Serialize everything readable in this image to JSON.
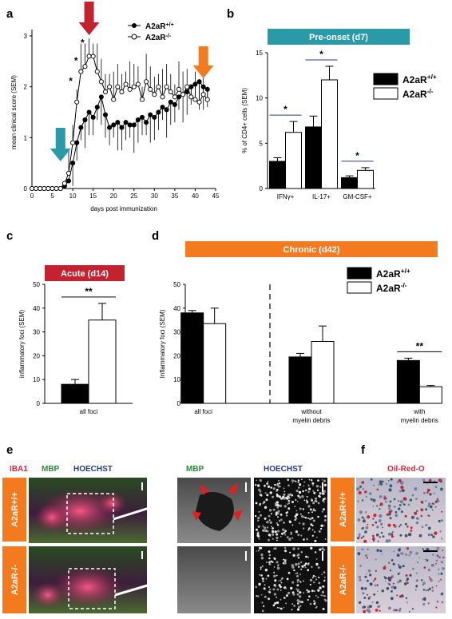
{
  "panels": {
    "a": "a",
    "b": "b",
    "c": "c",
    "d": "d",
    "e": "e",
    "f": "f"
  },
  "genotypes": {
    "wt": "A2aR+/+",
    "ko": "A2aR-/-"
  },
  "colors": {
    "teal": "#2a9aa8",
    "red": "#c4222f",
    "orange": "#f47a20",
    "black": "#000000",
    "white": "#ffffff"
  },
  "chart_data": [
    {
      "id": "a",
      "type": "line",
      "xlabel": "days post immunization",
      "ylabel": "mean clinical score (SEM)",
      "xlim": [
        0,
        45
      ],
      "ylim": [
        0,
        3
      ],
      "xticks": [
        0,
        5,
        10,
        15,
        20,
        25,
        30,
        35,
        40,
        45
      ],
      "yticks": [
        0,
        1,
        2,
        3
      ],
      "legend": [
        "A2aR+/+",
        "A2aR-/-"
      ],
      "series": [
        {
          "name": "A2aR+/+",
          "marker": "filled",
          "x": [
            0,
            1,
            2,
            3,
            4,
            5,
            6,
            7,
            8,
            9,
            10,
            11,
            12,
            13,
            14,
            15,
            16,
            17,
            18,
            19,
            20,
            21,
            22,
            23,
            24,
            25,
            26,
            27,
            28,
            29,
            30,
            31,
            32,
            33,
            34,
            35,
            36,
            37,
            38,
            39,
            40,
            41,
            42,
            43
          ],
          "y": [
            0,
            0,
            0,
            0,
            0,
            0,
            0,
            0,
            0.05,
            0.15,
            0.5,
            0.9,
            1.2,
            1.35,
            1.5,
            1.4,
            1.6,
            1.8,
            1.45,
            1.2,
            1.25,
            1.3,
            1.2,
            1.3,
            1.25,
            1.25,
            1.35,
            1.4,
            1.3,
            1.45,
            1.4,
            1.5,
            1.6,
            1.55,
            1.7,
            1.65,
            1.8,
            1.85,
            1.9,
            2.0,
            2.05,
            2.1,
            2.0,
            1.95
          ]
        },
        {
          "name": "A2aR-/-",
          "marker": "open",
          "x": [
            0,
            1,
            2,
            3,
            4,
            5,
            6,
            7,
            8,
            9,
            10,
            11,
            12,
            13,
            14,
            15,
            16,
            17,
            18,
            19,
            20,
            21,
            22,
            23,
            24,
            25,
            26,
            27,
            28,
            29,
            30,
            31,
            32,
            33,
            34,
            35,
            36,
            37,
            38,
            39,
            40,
            41,
            42,
            43
          ],
          "y": [
            0,
            0,
            0,
            0,
            0,
            0,
            0,
            0,
            0.1,
            0.3,
            0.9,
            1.7,
            2.3,
            2.4,
            2.6,
            2.6,
            2.3,
            2.1,
            1.9,
            2.0,
            1.75,
            2.0,
            1.9,
            2.05,
            1.95,
            2.0,
            2.05,
            1.75,
            2.1,
            1.95,
            1.85,
            2.0,
            1.8,
            2.0,
            1.9,
            1.8,
            1.95,
            1.85,
            2.0,
            1.8,
            1.75,
            1.7,
            1.85,
            1.75
          ]
        }
      ],
      "annotations": [
        "*",
        "*",
        "*"
      ],
      "arrows": [
        {
          "at_day": 7,
          "color": "teal"
        },
        {
          "at_day": 14,
          "color": "red"
        },
        {
          "at_day": 42,
          "color": "orange"
        }
      ]
    },
    {
      "id": "b",
      "type": "bar",
      "banner": "Pre-onset (d7)",
      "ylabel": "% of CD4+ cells (SEM)",
      "ylim": [
        0,
        15
      ],
      "yticks": [
        0,
        5,
        10,
        15
      ],
      "categories": [
        "IFNγ+",
        "IL-17+",
        "GM-CSF+"
      ],
      "series": [
        {
          "name": "A2aR+/+",
          "values": [
            3.0,
            6.8,
            1.2
          ],
          "errors": [
            0.4,
            1.2,
            0.2
          ]
        },
        {
          "name": "A2aR-/-",
          "values": [
            6.2,
            12.0,
            2.0
          ],
          "errors": [
            1.2,
            1.5,
            0.3
          ]
        }
      ],
      "significance": [
        "*",
        "*",
        "*"
      ]
    },
    {
      "id": "c",
      "type": "bar",
      "banner": "Acute (d14)",
      "ylabel": "inflammatory foci (SEM)",
      "ylim": [
        0,
        50
      ],
      "yticks": [
        0,
        10,
        20,
        30,
        40,
        50
      ],
      "categories": [
        "all foci"
      ],
      "series": [
        {
          "name": "A2aR+/+",
          "values": [
            8
          ],
          "errors": [
            2
          ]
        },
        {
          "name": "A2aR-/-",
          "values": [
            35
          ],
          "errors": [
            7
          ]
        }
      ],
      "significance": [
        "**"
      ]
    },
    {
      "id": "d",
      "type": "bar",
      "banner": "Chronic (d42)",
      "ylabel": "Inflammatory foci (SEM)",
      "ylim": [
        0,
        50
      ],
      "yticks": [
        0,
        10,
        20,
        30,
        40,
        50
      ],
      "categories": [
        "all foci",
        "without myelin debris",
        "with myelin debris"
      ],
      "series": [
        {
          "name": "A2aR+/+",
          "values": [
            38,
            19.5,
            18
          ],
          "errors": [
            1,
            1.5,
            1
          ]
        },
        {
          "name": "A2aR-/-",
          "values": [
            33.5,
            26,
            7
          ],
          "errors": [
            6.5,
            6.5,
            0.5
          ]
        }
      ],
      "significance": [
        "",
        "",
        "**"
      ]
    }
  ],
  "panel_e": {
    "channels": {
      "iba1": "IBA1",
      "mbp": "MBP",
      "hoechst": "HOECHST"
    },
    "rows": [
      "A2aR+/+",
      "A2aR-/-"
    ]
  },
  "panel_f": {
    "title": "Oil-Red-O",
    "rows": [
      "A2aR+/+",
      "A2aR-/-"
    ]
  }
}
